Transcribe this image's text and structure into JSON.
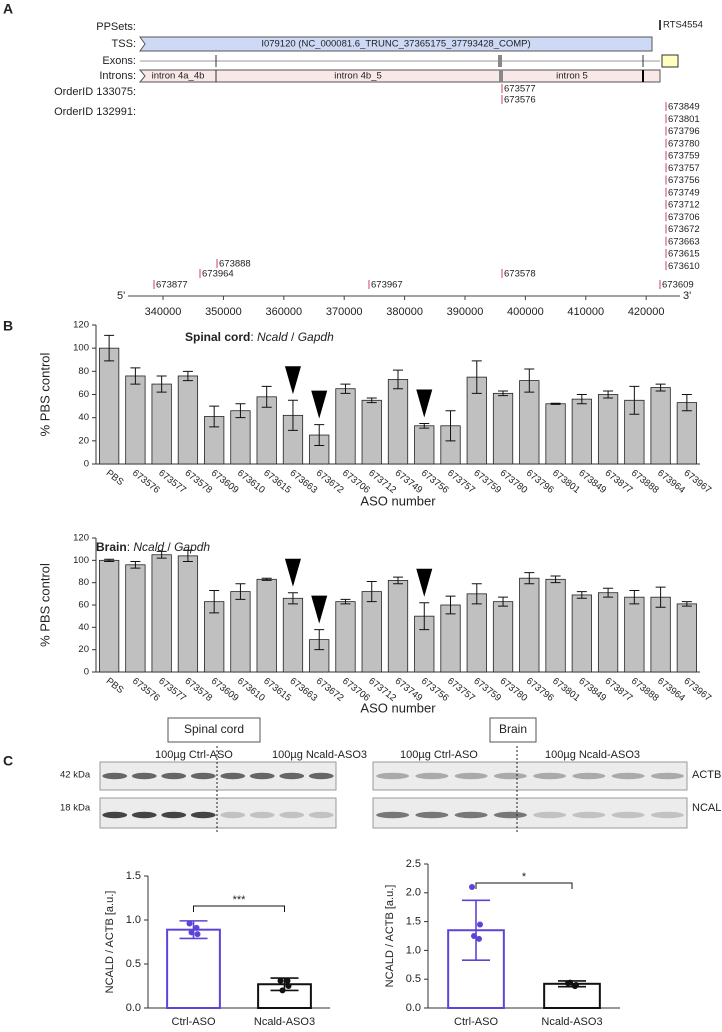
{
  "panel_labels": [
    "A",
    "B",
    "C"
  ],
  "genome_track": {
    "track_labels": [
      "PPSets:",
      "TSS:",
      "Exons:",
      "Introns:",
      "OrderID 133075:",
      "OrderID 132991:"
    ],
    "ppset": "RTS4554",
    "tss": "I079120 (NC_000081.6_TRUNC_37365175_37793428_COMP)",
    "introns": [
      "intron 4a_4b",
      "intron 4b_5",
      "intron 5"
    ],
    "order_133075": [
      "673577",
      "673576"
    ],
    "order_132991": [
      "673849",
      "673801",
      "673796",
      "673780",
      "673759",
      "673757",
      "673756",
      "673749",
      "673712",
      "673706",
      "673672",
      "673663",
      "673615",
      "673610",
      "673888",
      "673964",
      "673877",
      "673967",
      "673578",
      "673609"
    ],
    "five_prime": "5'",
    "three_prime": "3'",
    "xlim": [
      334200,
      425600
    ],
    "xticks": [
      340000,
      350000,
      360000,
      370000,
      380000,
      390000,
      400000,
      410000,
      420000
    ]
  },
  "chart_data": [
    {
      "type": "bar",
      "title": [
        "Spinal cord",
        ": ",
        "Ncald",
        " / ",
        "Gapdh"
      ],
      "x_label": "ASO number",
      "y_label": "% PBS control",
      "categories": [
        "PBS",
        "673576",
        "673577",
        "673578",
        "673609",
        "673610",
        "673615",
        "673663",
        "673672",
        "673706",
        "673712",
        "673749",
        "673756",
        "673757",
        "673759",
        "673780",
        "673796",
        "673801",
        "673849",
        "673877",
        "673888",
        "673964",
        "673967"
      ],
      "values": [
        100,
        76,
        69,
        76,
        41,
        46,
        58,
        42,
        25,
        65,
        55,
        73,
        33,
        33,
        75,
        61,
        72,
        52,
        56,
        60,
        55,
        66,
        53
      ],
      "errors": [
        11,
        7,
        7,
        4,
        9,
        6,
        9,
        13,
        9,
        4,
        2,
        8,
        2,
        13,
        14,
        2,
        10,
        0.5,
        4,
        3,
        12,
        3,
        7
      ],
      "color": "#c0c0c0",
      "ylim": [
        0,
        120
      ],
      "yticks": [
        0,
        20,
        40,
        60,
        80,
        100,
        120
      ]
    },
    {
      "type": "bar",
      "title": [
        "Brain",
        ": ",
        "Ncald",
        " / ",
        "Gapdh"
      ],
      "x_label": "ASO number",
      "y_label": "% PBS control",
      "categories": [
        "PBS",
        "673576",
        "673577",
        "673578",
        "673609",
        "673610",
        "673615",
        "673663",
        "673672",
        "673706",
        "673712",
        "673749",
        "673756",
        "673757",
        "673759",
        "673780",
        "673796",
        "673801",
        "673849",
        "673877",
        "673888",
        "673964",
        "673967"
      ],
      "values": [
        100,
        96,
        105,
        104,
        63,
        72,
        83,
        66,
        29,
        63,
        72,
        82,
        50,
        60,
        70,
        63,
        84,
        83,
        69,
        71,
        67,
        67,
        61
      ],
      "errors": [
        1,
        3,
        3,
        5,
        10,
        7,
        1,
        5,
        9,
        2,
        9,
        3,
        12,
        8,
        9,
        4,
        5,
        3,
        3,
        4,
        6,
        9,
        2
      ],
      "color": "#c0c0c0",
      "ylim": [
        0,
        120
      ],
      "yticks": [
        0,
        20,
        40,
        60,
        80,
        100,
        120
      ]
    },
    {
      "type": "bar",
      "y_label": "NCALD / ACTB [a.u.]",
      "categories": [
        "Ctrl-ASO",
        "Ncald-ASO3"
      ],
      "values": [
        0.89,
        0.27
      ],
      "errors": [
        0.1,
        0.07
      ],
      "points": [
        [
          0.96,
          0.84,
          0.86,
          0.91
        ],
        [
          0.31,
          0.25,
          0.2,
          0.31
        ]
      ],
      "colors": [
        "#5b45d8",
        "#111111"
      ],
      "significance": "***",
      "ylim": [
        0,
        1.5
      ],
      "yticks": [
        {
          "value": 0,
          "label": "0.0"
        },
        {
          "value": 0.5,
          "label": "0.5"
        },
        {
          "value": 1,
          "label": "1.0"
        },
        {
          "value": 1.5,
          "label": "1.5"
        }
      ]
    },
    {
      "type": "bar",
      "y_label": "NCALD / ACTB [a.u.]",
      "categories": [
        "Ctrl-ASO",
        "Ncald-ASO3"
      ],
      "values": [
        1.35,
        0.42
      ],
      "errors": [
        0.52,
        0.05
      ],
      "points": [
        [
          2.1,
          1.45,
          1.25,
          1.2
        ],
        [
          0.43,
          0.4,
          0.44,
          0.38
        ]
      ],
      "colors": [
        "#5b45d8",
        "#111111"
      ],
      "significance": "*",
      "ylim": [
        0,
        2.5
      ],
      "yticks": [
        {
          "value": 0,
          "label": "0.0"
        },
        {
          "value": 0.5,
          "label": "0.5"
        },
        {
          "value": 1,
          "label": "1.0"
        },
        {
          "value": 1.5,
          "label": "1.5"
        },
        {
          "value": 2,
          "label": "2.0"
        },
        {
          "value": 2.5,
          "label": "2.5"
        }
      ]
    }
  ],
  "western_blot": {
    "panels": [
      {
        "tissue": "Spinal cord",
        "groups": [
          "100µg Ctrl-ASO",
          "100µg Ncald-ASO3"
        ]
      },
      {
        "tissue": "Brain",
        "groups": [
          "100µg Ctrl-ASO",
          "100µg Ncald-ASO3"
        ]
      }
    ],
    "sizes": [
      "42 kDa",
      "18 kDa"
    ],
    "proteins": [
      "ACTB",
      "NCALD"
    ]
  }
}
